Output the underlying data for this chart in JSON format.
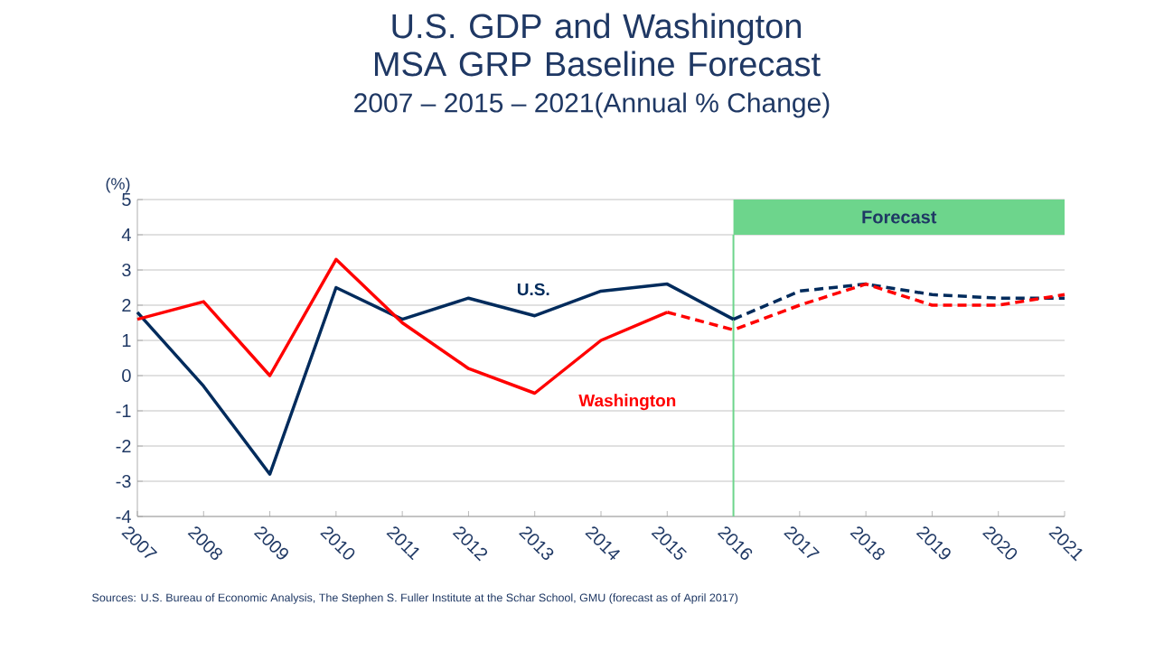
{
  "chart_data": {
    "type": "line",
    "title": "U.S. GDP and Washington MSA GRP Baseline Forecast",
    "subtitle": "2007 – 2015 – 2021(Annual % Change)",
    "ylabel": "(%)",
    "categories": [
      "2007",
      "2008",
      "2009",
      "2010",
      "2011",
      "2012",
      "2013",
      "2014",
      "2015",
      "2016",
      "2017",
      "2018",
      "2019",
      "2020",
      "2021"
    ],
    "series": [
      {
        "name": "U.S.",
        "color": "#002b5c",
        "line_style": "solid",
        "values": [
          1.8,
          -0.3,
          -2.8,
          2.5,
          1.6,
          2.2,
          1.7,
          2.4,
          2.6,
          1.6,
          null,
          null,
          null,
          null,
          null
        ]
      },
      {
        "color": "#002b5c",
        "line_style": "dashed",
        "values": [
          null,
          null,
          null,
          null,
          null,
          null,
          null,
          null,
          null,
          1.6,
          2.4,
          2.6,
          2.3,
          2.2,
          2.2
        ]
      },
      {
        "name": "Washington",
        "color": "#ff0000",
        "line_style": "solid",
        "values": [
          1.6,
          2.1,
          0.0,
          3.3,
          1.5,
          0.2,
          -0.5,
          1.0,
          1.8,
          null,
          null,
          null,
          null,
          null,
          null
        ]
      },
      {
        "color": "#ff0000",
        "line_style": "dashed",
        "values": [
          null,
          null,
          null,
          null,
          null,
          null,
          null,
          null,
          1.8,
          1.3,
          2.0,
          2.6,
          2.0,
          2.0,
          2.3
        ]
      }
    ],
    "ylim": [
      -4,
      5
    ],
    "yticks": [
      -4,
      -3,
      -2,
      -1,
      0,
      1,
      2,
      3,
      4,
      5
    ],
    "grid": "y",
    "marker": "none",
    "ref_lines": [
      {
        "axis": "x",
        "value": "2016",
        "color": "#6dd58c"
      }
    ],
    "bands": [
      {
        "axis": "x",
        "from": "2016",
        "to": "2021",
        "label": "Forecast",
        "color": "#6dd58c"
      }
    ],
    "annotations": [
      "Sources: U.S. Bureau of Economic Analysis, The Stephen S. Fuller Institute at the Schar School, GMU (forecast as of April 2017)"
    ]
  }
}
